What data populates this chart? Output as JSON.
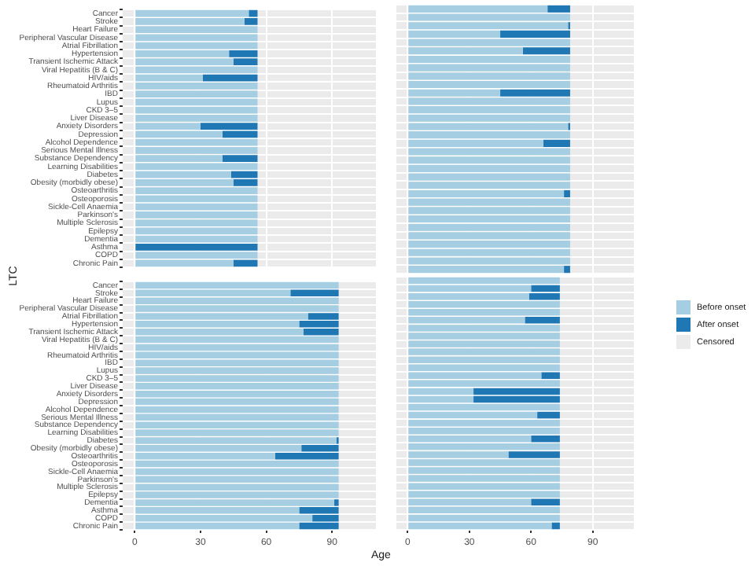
{
  "chart_data": [
    {
      "type": "bar",
      "orientation": "horizontal",
      "stacked": true,
      "ylabel": "LTC",
      "xlabel": "Age",
      "legend": "right",
      "grid": true,
      "tick_labels": "y",
      "xlim": [
        -5.5,
        110
      ],
      "xticks": [
        0,
        30,
        60,
        90
      ],
      "categories": [
        "Cancer",
        "Stroke",
        "Heart Failure",
        "Peripheral Vascular Disease",
        "Atrial Fibrillation",
        "Hypertension",
        "Transient Ischemic Attack",
        "Viral Hepatitis (B & C)",
        "HIV/aids",
        "Rheumatoid Arthritis",
        "IBD",
        "Lupus",
        "CKD 3–5",
        "Liver Disease",
        "Anxiety Disorders",
        "Depression",
        "Alcohol Dependence",
        "Serious Mental Illness",
        "Substance Dependency",
        "Learning Disabilities",
        "Diabetes",
        "Obesity (morbidly obese)",
        "Osteoarthritis",
        "Osteoporosis",
        "Sickle-Cell Anaemia",
        "Parkinson's",
        "Multiple Sclerosis",
        "Epilepsy",
        "Dementia",
        "Asthma",
        "COPD",
        "Chronic Pain"
      ],
      "series": [
        {
          "name": "Before onset",
          "color": "#a6cee3",
          "values": [
            52,
            50,
            56,
            56,
            56,
            43,
            45,
            56,
            31,
            56,
            56,
            56,
            56,
            56,
            30,
            40,
            56,
            56,
            40,
            56,
            44,
            45,
            56,
            56,
            56,
            56,
            56,
            56,
            56,
            0,
            56,
            45
          ]
        },
        {
          "name": "After onset",
          "color": "#1f78b4",
          "values": [
            4,
            6,
            null,
            null,
            null,
            13,
            11,
            null,
            25,
            null,
            null,
            null,
            null,
            null,
            26,
            16,
            null,
            null,
            16,
            null,
            12,
            11,
            null,
            null,
            null,
            null,
            null,
            null,
            null,
            56,
            null,
            11
          ]
        },
        {
          "name": "Censored",
          "color": "#ebebeb",
          "values": [
            null,
            null,
            null,
            null,
            null,
            null,
            null,
            null,
            null,
            null,
            null,
            null,
            null,
            null,
            null,
            null,
            null,
            null,
            null,
            null,
            null,
            null,
            null,
            null,
            null,
            null,
            null,
            null,
            null,
            null,
            null,
            null
          ]
        }
      ]
    },
    {
      "type": "bar",
      "orientation": "horizontal",
      "stacked": true,
      "grid": true,
      "tick_labels": false,
      "xlim": [
        -5.5,
        110
      ],
      "xticks": [
        0,
        30,
        60,
        90
      ],
      "categories": [
        null,
        null,
        null,
        null,
        null,
        null,
        null,
        null,
        null,
        null,
        null,
        null,
        null,
        null,
        null,
        null,
        null,
        null,
        null,
        null,
        null,
        null,
        null,
        null,
        null,
        null,
        null,
        null,
        null,
        null,
        null,
        null
      ],
      "series": [
        {
          "color": "#a6cee3",
          "values": [
            68,
            79,
            78,
            45,
            79,
            56,
            79,
            79,
            79,
            79,
            45,
            79,
            79,
            79,
            78,
            79,
            66,
            79,
            79,
            79,
            79,
            79,
            76,
            79,
            79,
            79,
            79,
            79,
            79,
            79,
            79,
            76
          ]
        },
        {
          "color": "#1f78b4",
          "values": [
            11,
            null,
            1,
            34,
            null,
            23,
            null,
            null,
            null,
            null,
            34,
            null,
            null,
            null,
            1,
            null,
            13,
            null,
            null,
            null,
            null,
            null,
            3,
            null,
            null,
            null,
            null,
            null,
            null,
            null,
            null,
            3
          ]
        }
      ]
    },
    {
      "type": "bar",
      "orientation": "horizontal",
      "stacked": true,
      "grid": true,
      "xlim": [
        -5.5,
        110
      ],
      "xticks": [
        0,
        30,
        60,
        90
      ],
      "categories": [
        "Cancer",
        "Stroke",
        "Heart Failure",
        "Peripheral Vascular Disease",
        "Atrial Fibrillation",
        "Hypertension",
        "Transient Ischemic Attack",
        "Viral Hepatitis (B & C)",
        "HIV/aids",
        "Rheumatoid Arthritis",
        "IBD",
        "Lupus",
        "CKD 3–5",
        "Liver Disease",
        "Anxiety Disorders",
        "Depression",
        "Alcohol Dependence",
        "Serious Mental Illness",
        "Substance Dependency",
        "Learning Disabilities",
        "Diabetes",
        "Obesity (morbidly obese)",
        "Osteoarthritis",
        "Osteoporosis",
        "Sickle-Cell Anaemia",
        "Parkinson's",
        "Multiple Sclerosis",
        "Epilepsy",
        "Dementia",
        "Asthma",
        "COPD",
        "Chronic Pain"
      ],
      "series": [
        {
          "color": "#a6cee3",
          "values": [
            93,
            71,
            93,
            93,
            79,
            75,
            77,
            93,
            93,
            93,
            93,
            93,
            93,
            93,
            93,
            93,
            93,
            93,
            93,
            93,
            92,
            76,
            64,
            93,
            93,
            93,
            93,
            93,
            91,
            75,
            81,
            75
          ]
        },
        {
          "color": "#1f78b4",
          "values": [
            null,
            22,
            null,
            null,
            14,
            18,
            16,
            null,
            null,
            null,
            null,
            null,
            null,
            null,
            null,
            null,
            null,
            null,
            null,
            null,
            1,
            17,
            29,
            null,
            null,
            null,
            null,
            null,
            2,
            18,
            12,
            18
          ]
        }
      ]
    },
    {
      "type": "bar",
      "orientation": "horizontal",
      "stacked": true,
      "grid": true,
      "tick_labels": "x",
      "xlim": [
        -5.5,
        110
      ],
      "xticks": [
        0,
        30,
        60,
        90
      ],
      "categories": [
        null,
        null,
        null,
        null,
        null,
        null,
        null,
        null,
        null,
        null,
        null,
        null,
        null,
        null,
        null,
        null,
        null,
        null,
        null,
        null,
        null,
        null,
        null,
        null,
        null,
        null,
        null,
        null,
        null,
        null,
        null,
        null
      ],
      "series": [
        {
          "color": "#a6cee3",
          "values": [
            74,
            60,
            59,
            74,
            74,
            57,
            74,
            74,
            74,
            74,
            74,
            74,
            65,
            74,
            32,
            32,
            74,
            63,
            74,
            74,
            60,
            74,
            49,
            74,
            74,
            74,
            74,
            74,
            60,
            74,
            74,
            70
          ]
        },
        {
          "color": "#1f78b4",
          "values": [
            null,
            14,
            15,
            null,
            null,
            17,
            null,
            null,
            null,
            null,
            null,
            null,
            9,
            null,
            42,
            42,
            null,
            11,
            null,
            null,
            14,
            null,
            25,
            null,
            null,
            null,
            null,
            null,
            14,
            null,
            null,
            4
          ]
        }
      ]
    }
  ]
}
